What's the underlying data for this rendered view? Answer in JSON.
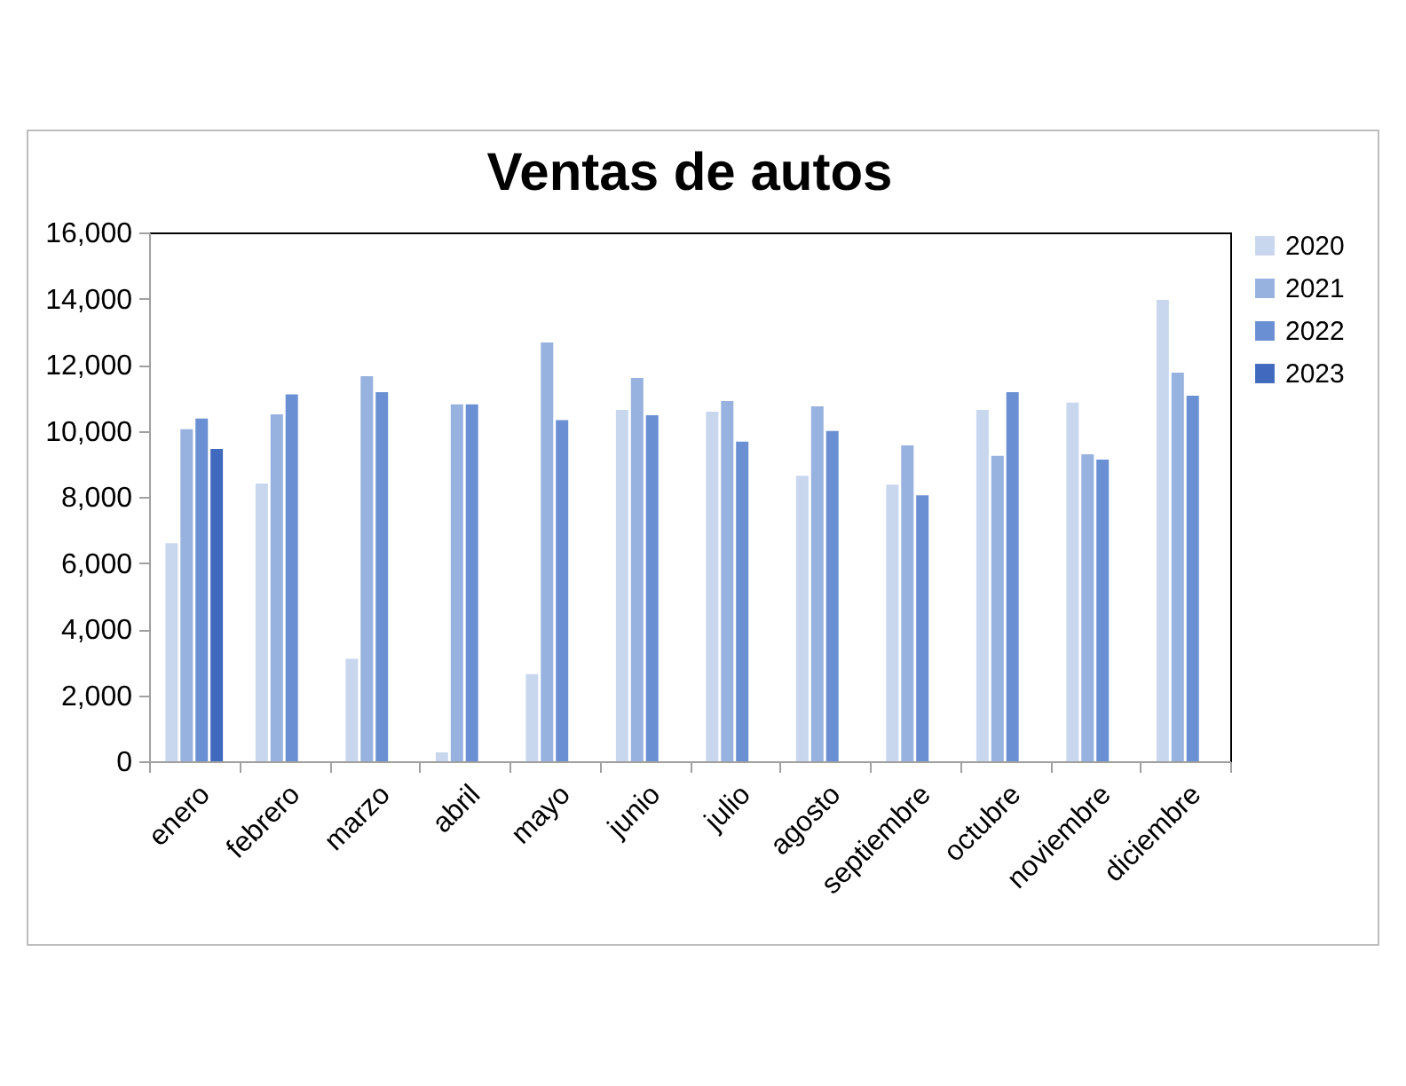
{
  "chart_data": {
    "type": "bar",
    "title": "Ventas de autos",
    "categories": [
      "enero",
      "febrero",
      "marzo",
      "abril",
      "mayo",
      "junio",
      "julio",
      "agosto",
      "septiembre",
      "octubre",
      "noviembre",
      "diciembre"
    ],
    "series": [
      {
        "name": "2020",
        "color": "#c9d7ee",
        "values": [
          6600,
          8400,
          3100,
          270,
          2640,
          10630,
          10580,
          8640,
          8370,
          10630,
          10850,
          13960
        ]
      },
      {
        "name": "2021",
        "color": "#97b2df",
        "values": [
          10050,
          10500,
          11650,
          10800,
          12670,
          11600,
          10900,
          10740,
          9560,
          9240,
          9290,
          11760
        ]
      },
      {
        "name": "2022",
        "color": "#6a8fd3",
        "values": [
          10370,
          11100,
          11170,
          10800,
          10320,
          10470,
          9670,
          9990,
          8050,
          11170,
          9130,
          11060
        ]
      },
      {
        "name": "2023",
        "color": "#4169bd",
        "values": [
          9450,
          null,
          null,
          null,
          null,
          null,
          null,
          null,
          null,
          null,
          null,
          null
        ]
      }
    ],
    "ylim": [
      0,
      16000
    ],
    "yticks": [
      0,
      {
        "value": 2000,
        "label": "2,000"
      },
      {
        "value": 4000,
        "label": "4,000"
      },
      {
        "value": 6000,
        "label": "6,000"
      },
      {
        "value": 8000,
        "label": "8,000"
      },
      {
        "value": 10000,
        "label": "10,000"
      },
      {
        "value": 12000,
        "label": "12,000"
      },
      {
        "value": 14000,
        "label": "14,000"
      },
      {
        "value": 16000,
        "label": "16,000"
      }
    ],
    "grid": false,
    "legend": "right"
  }
}
